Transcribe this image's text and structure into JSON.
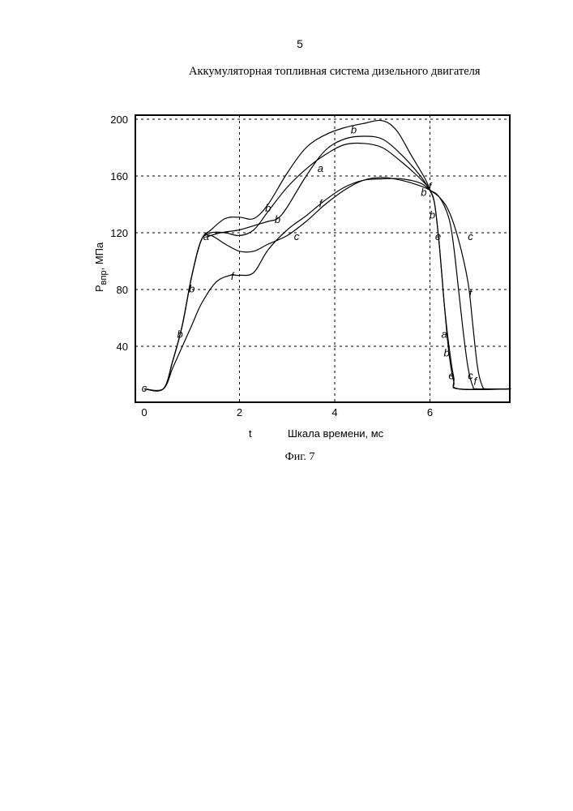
{
  "page": {
    "number": "5",
    "title": "Аккумуляторная топливная система дизельного двигателя",
    "caption": "Фиг. 7"
  },
  "chart_data": {
    "type": "line",
    "xlabel": "Шкала времени, мс",
    "xlabel_prefix": "t",
    "ylabel_main": "P",
    "ylabel_sub": "впр",
    "ylabel_unit": ",  МПа",
    "xlim": [
      0,
      7.7
    ],
    "ylim": [
      0,
      202
    ],
    "xticks": [
      0,
      2,
      4,
      6
    ],
    "yticks": [
      40,
      80,
      120,
      160,
      200
    ],
    "grid": "dashed",
    "series": [
      {
        "name": "a",
        "x": [
          0,
          0.4,
          0.6,
          0.8,
          1.0,
          1.2,
          1.4,
          1.7,
          2.0,
          2.3,
          2.6,
          3.0,
          3.4,
          3.8,
          4.2,
          4.6,
          5.0,
          5.4,
          5.8,
          6.0,
          6.1,
          6.2,
          6.3,
          6.4,
          6.5,
          6.6,
          7.7
        ],
        "y": [
          10,
          10,
          30,
          55,
          90,
          115,
          120,
          120,
          118,
          122,
          135,
          152,
          165,
          175,
          182,
          183,
          180,
          170,
          158,
          150,
          140,
          110,
          70,
          35,
          15,
          10,
          10
        ]
      },
      {
        "name": "b",
        "x": [
          0,
          0.4,
          0.6,
          0.8,
          1.0,
          1.2,
          1.4,
          1.7,
          2.0,
          2.3,
          2.6,
          3.0,
          3.4,
          3.8,
          4.2,
          4.6,
          5.0,
          5.3,
          5.6,
          5.9,
          6.0,
          6.1,
          6.2,
          6.3,
          6.4,
          6.5,
          6.6,
          7.7
        ],
        "y": [
          10,
          10,
          30,
          55,
          90,
          115,
          122,
          130,
          131,
          130,
          140,
          162,
          180,
          189,
          194,
          197,
          199,
          192,
          175,
          158,
          150,
          140,
          110,
          70,
          40,
          18,
          10,
          10
        ]
      },
      {
        "name": "b2",
        "x": [
          1.3,
          1.6,
          2.0,
          2.3,
          2.6,
          2.8,
          3.0,
          3.4,
          3.8,
          4.2,
          4.6,
          5.0,
          5.4,
          5.8,
          6.0
        ],
        "y": [
          117,
          120,
          122,
          125,
          128,
          130,
          138,
          160,
          178,
          186,
          188,
          186,
          175,
          160,
          150
        ]
      },
      {
        "name": "c",
        "x": [
          0,
          0.4,
          0.6,
          0.8,
          1.0,
          1.2,
          1.4,
          1.7,
          2.0,
          2.3,
          2.6,
          3.0,
          3.4,
          3.8,
          4.2,
          4.6,
          5.0,
          5.4,
          5.8,
          6.0,
          6.2,
          6.4,
          6.5,
          6.6,
          6.7,
          6.8,
          6.9,
          7.0,
          7.7
        ],
        "y": [
          10,
          10,
          30,
          55,
          90,
          115,
          118,
          112,
          107,
          107,
          112,
          118,
          128,
          140,
          150,
          157,
          159,
          157,
          153,
          150,
          145,
          130,
          110,
          80,
          50,
          25,
          12,
          10,
          10
        ]
      },
      {
        "name": "f",
        "x": [
          0,
          0.4,
          0.6,
          0.8,
          1.0,
          1.2,
          1.5,
          1.8,
          2.0,
          2.3,
          2.6,
          3.0,
          3.4,
          3.8,
          4.2,
          4.6,
          5.0,
          5.4,
          5.8,
          6.0,
          6.2,
          6.4,
          6.6,
          6.8,
          6.9,
          7.0,
          7.1,
          7.2,
          7.7
        ],
        "y": [
          10,
          10,
          25,
          40,
          55,
          70,
          85,
          90,
          90,
          92,
          108,
          122,
          132,
          143,
          152,
          157,
          158,
          158,
          155,
          150,
          145,
          135,
          115,
          85,
          55,
          25,
          12,
          10,
          10
        ]
      }
    ],
    "curve_labels": [
      {
        "text": "a",
        "x": 3.7,
        "y": 163
      },
      {
        "text": "b",
        "x": 2.6,
        "y": 135
      },
      {
        "text": "b",
        "x": 4.4,
        "y": 190
      },
      {
        "text": "b",
        "x": 2.8,
        "y": 127
      },
      {
        "text": "c",
        "x": 3.2,
        "y": 115
      },
      {
        "text": "f",
        "x": 1.85,
        "y": 87
      },
      {
        "text": "f",
        "x": 3.7,
        "y": 138
      },
      {
        "text": "a",
        "x": 1.3,
        "y": 115
      },
      {
        "text": "b",
        "x": 0.75,
        "y": 46
      },
      {
        "text": "b",
        "x": 1.0,
        "y": 78
      },
      {
        "text": "c",
        "x": 0.0,
        "y": 8
      },
      {
        "text": "f",
        "x": 6.0,
        "y": 150
      },
      {
        "text": "b",
        "x": 5.87,
        "y": 146
      },
      {
        "text": "b",
        "x": 6.05,
        "y": 130
      },
      {
        "text": "e",
        "x": 6.17,
        "y": 115
      },
      {
        "text": "a",
        "x": 6.3,
        "y": 46
      },
      {
        "text": "b",
        "x": 6.35,
        "y": 33
      },
      {
        "text": "e",
        "x": 6.45,
        "y": 17
      },
      {
        "text": "c",
        "x": 6.85,
        "y": 115
      },
      {
        "text": "f",
        "x": 6.85,
        "y": 75
      },
      {
        "text": "c",
        "x": 6.85,
        "y": 17
      },
      {
        "text": "f",
        "x": 6.95,
        "y": 13
      }
    ]
  }
}
